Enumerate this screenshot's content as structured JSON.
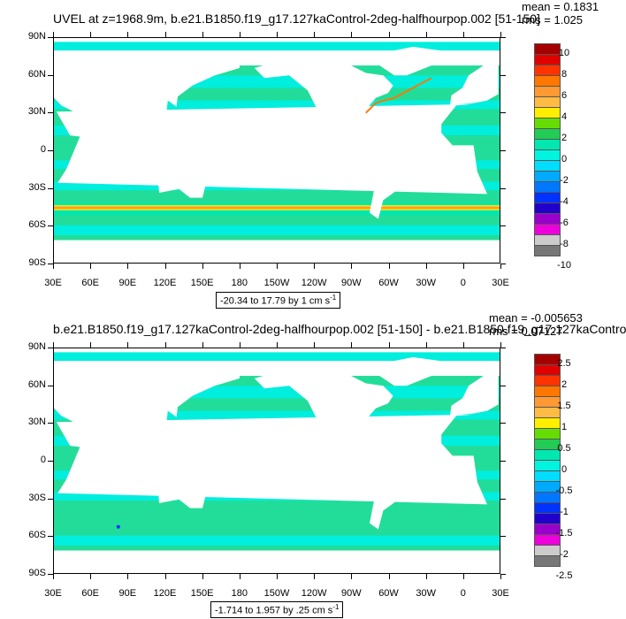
{
  "panels": [
    {
      "title": "UVEL at z=1968.9m, b.e21.B1850.f19_g17.127kaControl-2deg-halfhourpop.002 [51-150]",
      "mean": "mean = 0.1831",
      "rms": "rms = 1.025",
      "range_text": "-20.34 to 17.79 by 1 cm s",
      "range_unit_sup": "-1",
      "lat_labels": [
        "90N",
        "60N",
        "30N",
        "0",
        "30S",
        "60S",
        "90S"
      ],
      "lon_labels": [
        "30E",
        "60E",
        "90E",
        "120E",
        "150E",
        "180",
        "150W",
        "120W",
        "90W",
        "60W",
        "30W",
        "0",
        "30E"
      ],
      "colorbar_labels": [
        "10",
        "8",
        "6",
        "4",
        "2",
        "0",
        "-2",
        "-4",
        "-6",
        "-8",
        "-10"
      ]
    },
    {
      "title": "b.e21.B1850.f19_g17.127kaControl-2deg-halfhourpop.002 [51-150] - b.e21.B1850.f19_g17.127kaContro",
      "mean": "mean = -0.005653",
      "rms": "rms = 0.07127",
      "range_text": "-1.714 to 1.957 by .25 cm s",
      "range_unit_sup": "-1",
      "lat_labels": [
        "90N",
        "60N",
        "30N",
        "0",
        "30S",
        "60S",
        "90S"
      ],
      "lon_labels": [
        "30E",
        "60E",
        "90E",
        "120E",
        "150E",
        "180",
        "150W",
        "120W",
        "90W",
        "60W",
        "30W",
        "0",
        "30E"
      ],
      "colorbar_labels": [
        "2.5",
        "2",
        "1.5",
        "1",
        "0.5",
        "0",
        "-0.5",
        "-1",
        "-1.5",
        "-2",
        "-2.5"
      ]
    }
  ],
  "colors": {
    "colorbar_top_to_bottom": [
      "#a50000",
      "#e00000",
      "#ff3300",
      "#ff7700",
      "#ff9933",
      "#ffbb44",
      "#ffee00",
      "#66dd00",
      "#22cc55",
      "#00e8b0",
      "#00f5e0",
      "#00ddff",
      "#00aaff",
      "#0077ff",
      "#0033ff",
      "#2200cc",
      "#9900cc",
      "#ee00dd",
      "#cccccc",
      "#777777"
    ],
    "ocean_dominant": "#22dd99",
    "ocean_secondary": "#00eedd",
    "land": "#ffffff"
  }
}
